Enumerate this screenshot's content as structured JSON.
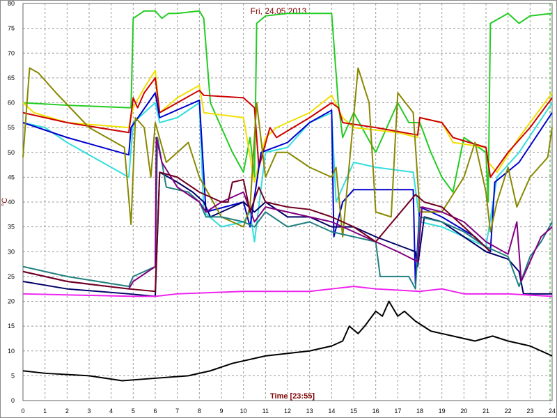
{
  "chart_data": {
    "type": "line",
    "title": "Fri, 24.05.2013",
    "x_label": "Time [23:55]",
    "y_label": "°C",
    "xlim": [
      0,
      24
    ],
    "ylim": [
      0,
      80
    ],
    "xticks": [
      0,
      1,
      2,
      3,
      4,
      5,
      6,
      7,
      8,
      9,
      10,
      11,
      12,
      13,
      14,
      15,
      16,
      17,
      18,
      19,
      20,
      21,
      22,
      23,
      24
    ],
    "yticks": [
      0,
      5,
      10,
      15,
      20,
      25,
      30,
      35,
      40,
      45,
      50,
      55,
      60,
      65,
      70,
      75,
      80
    ],
    "grid": true,
    "series": [
      {
        "color": "#22cc22",
        "x": [
          0,
          2,
          4.8,
          4.9,
          5,
          5.5,
          6,
          6.3,
          6.6,
          7,
          8,
          8.2,
          8.5,
          9,
          9.5,
          10,
          10.3,
          10.5,
          10.6,
          11,
          12,
          14,
          14.3,
          14.5,
          15,
          16,
          17,
          17.5,
          18,
          18.5,
          19,
          19.5,
          20,
          21,
          21.1,
          21.2,
          21.6,
          22,
          22.5,
          23,
          24
        ],
        "values": [
          60,
          59.5,
          59,
          59,
          77,
          78.5,
          78.5,
          77,
          78,
          78,
          78.5,
          77,
          60,
          55,
          50,
          46,
          53,
          45,
          76,
          77.5,
          78,
          78,
          60,
          53,
          58,
          50,
          60,
          56,
          56,
          50,
          45,
          42,
          53,
          50,
          40,
          76,
          77,
          78,
          76,
          77.5,
          78
        ]
      },
      {
        "color": "#f0e000",
        "x": [
          0,
          0.5,
          2,
          4.8,
          5,
          5.5,
          6,
          6.2,
          7,
          8,
          8.2,
          10,
          10.5,
          11,
          11.5,
          13,
          14,
          14.5,
          15,
          17,
          17.9,
          18,
          19,
          19.5,
          21,
          21.1,
          21.5,
          22.5,
          24
        ],
        "values": [
          60,
          58,
          56,
          55,
          59,
          63,
          66.5,
          58,
          61,
          63.5,
          58,
          57,
          44,
          53,
          55,
          58,
          61.5,
          57,
          55,
          54,
          53,
          57,
          56,
          52,
          51,
          48,
          46,
          53,
          62
        ]
      },
      {
        "color": "#cc0000",
        "x": [
          0,
          2,
          4.8,
          5,
          5.2,
          5.5,
          6,
          6.2,
          7,
          8,
          8.2,
          10,
          10.5,
          10.7,
          11.2,
          11.5,
          13,
          14,
          14.3,
          14.5,
          16,
          17.9,
          18,
          19,
          19.5,
          21,
          21.2,
          22,
          23,
          24
        ],
        "values": [
          58,
          56,
          54,
          61,
          59,
          62,
          65,
          58,
          60,
          62.5,
          61.5,
          61,
          59,
          47,
          55,
          53,
          57,
          60,
          59,
          56,
          55,
          53.5,
          57,
          56,
          53,
          51,
          45,
          50,
          55,
          61
        ]
      },
      {
        "color": "#33dddd",
        "x": [
          0,
          1,
          2,
          4.8,
          5,
          5.5,
          6,
          6.2,
          7,
          8,
          8.2,
          9,
          10,
          10.3,
          10.5,
          11,
          12,
          13,
          14,
          14.2,
          15,
          16,
          17.7,
          18,
          19,
          20,
          21,
          21.5,
          22.5,
          24
        ],
        "values": [
          56,
          55,
          52,
          45,
          56,
          58,
          60,
          56,
          57,
          60,
          38,
          35,
          36,
          38,
          32,
          50,
          51,
          56,
          58,
          40,
          48,
          47,
          46,
          36,
          35,
          33,
          31,
          45,
          50,
          60
        ]
      },
      {
        "color": "#0000cc",
        "x": [
          0,
          2,
          4.8,
          4.9,
          6,
          6.2,
          8,
          8.3,
          10,
          10.3,
          10.8,
          12,
          13,
          14,
          14.1,
          14.5,
          15,
          17.7,
          17.8,
          18,
          19,
          20.5,
          21.2,
          21.4,
          22.5,
          24
        ],
        "values": [
          56,
          53,
          49.5,
          55,
          62,
          57,
          60.5,
          38,
          40,
          35,
          50,
          52,
          56,
          58.5,
          33,
          40,
          42.5,
          42.5,
          23.5,
          39,
          37,
          33,
          30,
          44,
          48,
          58
        ]
      },
      {
        "color": "#000066",
        "x": [
          0,
          2,
          4.8,
          6,
          6.2,
          7,
          7.7,
          8.2,
          8.5,
          9,
          10,
          10.5,
          11,
          12,
          13,
          14,
          15,
          16,
          17.8,
          17.9,
          18.2,
          19,
          20,
          21,
          22,
          22.5,
          22.7,
          24
        ],
        "values": [
          24,
          22.5,
          21.5,
          21,
          46,
          44,
          42,
          40,
          37,
          38,
          40,
          38,
          40,
          37,
          37,
          35,
          35,
          33,
          30,
          27,
          37,
          36,
          33,
          30,
          28.5,
          26,
          21.5,
          21.5
        ]
      },
      {
        "color": "#888800",
        "x": [
          0,
          0.3,
          0.7,
          1.5,
          3,
          4.6,
          4.9,
          5.1,
          5.5,
          5.8,
          6,
          6.5,
          7,
          7.5,
          8,
          9,
          10,
          10.3,
          10.6,
          11,
          11.5,
          12,
          13,
          14,
          14.2,
          14.5,
          15.2,
          15.7,
          16,
          16.7,
          17,
          17.7,
          18,
          19,
          20,
          20.5,
          21,
          21.2,
          21.5,
          22,
          22.4,
          23,
          23.8,
          24
        ],
        "values": [
          49,
          67,
          66,
          62,
          55,
          51,
          35.5,
          57,
          55,
          45,
          56,
          48,
          50,
          52,
          45,
          37,
          35,
          39,
          60,
          45,
          50,
          50,
          47,
          45,
          47,
          33,
          67,
          60,
          38,
          37,
          62,
          58,
          38,
          38,
          45,
          52,
          42,
          34,
          40,
          47,
          39,
          45,
          49,
          55
        ]
      },
      {
        "color": "#208080",
        "x": [
          0,
          2,
          4.8,
          5,
          6,
          6.1,
          6.5,
          7.5,
          8,
          8.3,
          9,
          10,
          10.5,
          11,
          12,
          13,
          14,
          15,
          16,
          16.2,
          17.5,
          17.8,
          18,
          19,
          20,
          21,
          22,
          22.5,
          23,
          23.5,
          24
        ],
        "values": [
          27,
          25,
          23,
          25,
          27,
          53,
          43,
          42,
          40,
          37,
          37,
          36,
          35,
          38,
          35,
          36,
          34,
          33,
          32,
          25,
          25,
          22.5,
          37,
          36,
          34,
          31,
          29,
          23,
          29,
          32,
          36
        ]
      },
      {
        "color": "#800080",
        "x": [
          0,
          2,
          4.8,
          5,
          6,
          6.05,
          6.3,
          7,
          8,
          8.3,
          9,
          10,
          10.5,
          11,
          12,
          13,
          14,
          15,
          16,
          17,
          17.9,
          18.1,
          19,
          20,
          21,
          22,
          22.4,
          22.6,
          23,
          23.5,
          24
        ],
        "values": [
          26,
          24,
          22.5,
          24,
          27,
          53,
          48,
          43,
          40,
          38,
          40,
          42,
          36,
          39,
          38,
          37,
          36,
          34,
          32,
          30,
          28,
          39,
          38,
          36,
          32,
          29.5,
          36,
          24,
          28,
          33,
          35
        ]
      },
      {
        "color": "#700020",
        "x": [
          0,
          2,
          4.8,
          6,
          6.2,
          7,
          8,
          9,
          9.3,
          9.5,
          10,
          10.3,
          10.7,
          11,
          12,
          13,
          14,
          14.5,
          15,
          16,
          17.8,
          18.2,
          19,
          20,
          21.2
        ],
        "values": [
          26,
          24,
          22.5,
          22,
          46,
          45,
          42,
          40,
          40,
          44,
          44.5,
          38,
          43,
          40,
          39,
          38.5,
          37,
          36,
          35,
          32,
          41.5,
          40,
          39,
          35,
          30
        ]
      },
      {
        "color": "#ee22ee",
        "x": [
          0,
          5,
          6,
          7,
          10,
          13,
          14,
          15,
          16,
          18,
          19,
          20,
          22,
          24
        ],
        "values": [
          21.5,
          21,
          21,
          21.5,
          22,
          22,
          22.5,
          23,
          22.5,
          22,
          22.5,
          21.5,
          21.5,
          21
        ]
      },
      {
        "color": "#000000",
        "x": [
          0,
          1,
          3,
          4.5,
          6,
          7.5,
          8.5,
          9.5,
          11,
          13,
          14,
          14.5,
          14.8,
          15.2,
          15.5,
          16,
          16.3,
          16.6,
          17,
          17.3,
          17.8,
          18.5,
          19.5,
          20.5,
          21.3,
          22,
          23,
          24
        ],
        "values": [
          6,
          5.5,
          5,
          4,
          4.5,
          5,
          6,
          7.5,
          9,
          10,
          11,
          12,
          15,
          13.5,
          15,
          18,
          17,
          20,
          17,
          18,
          16,
          14,
          13,
          12,
          13,
          12,
          11,
          9
        ]
      }
    ]
  }
}
